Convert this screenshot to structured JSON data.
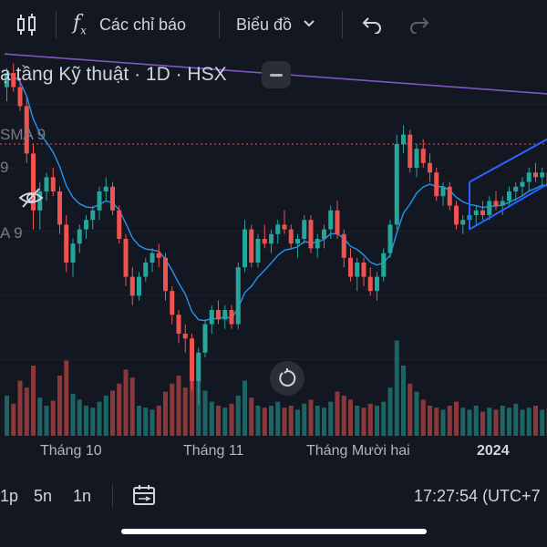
{
  "toolbar": {
    "indicators_label": "Các chỉ báo",
    "chart_type_label": "Biểu đồ"
  },
  "legend": {
    "title": "ạ tầng Kỹ thuật · 1D · HSX",
    "sma_label": "SMA 9",
    "ema_short_label": "9",
    "ema_label": "A 9"
  },
  "x_axis_labels": [
    "Tháng 10",
    "Tháng 11",
    "Tháng Mười hai",
    "2024"
  ],
  "bottom_bar": {
    "range_1": "1p",
    "range_2": "5n",
    "range_3": "1n",
    "clock": "17:27:54 (UTC+7"
  },
  "colors": {
    "background": "#131722",
    "up": "#26a69a",
    "down": "#ef5350",
    "sma_line": "#7e57c2",
    "ema_line": "#2196f3",
    "trend_channel": "#2962ff",
    "price_line": "#ef5350"
  },
  "icons": [
    "candles-icon",
    "fx-icon",
    "chevron-down-icon",
    "undo-icon",
    "redo-icon",
    "eye-off-icon",
    "date-range-icon",
    "reset-icon"
  ],
  "chart_data": {
    "type": "candlestick",
    "x_axis_ticks": [
      "Tháng 10",
      "Tháng 11",
      "Tháng Mười hai",
      "2024"
    ],
    "candles": [
      [
        16.2,
        16.6,
        15.9,
        16.5
      ],
      [
        16.5,
        16.7,
        16.1,
        16.2
      ],
      [
        16.2,
        16.4,
        15.7,
        15.8
      ],
      [
        15.8,
        16.0,
        14.6,
        14.8
      ],
      [
        14.8,
        15.0,
        13.2,
        13.6
      ],
      [
        13.6,
        14.2,
        13.2,
        14.0
      ],
      [
        14.0,
        14.4,
        13.8,
        14.3
      ],
      [
        14.3,
        14.5,
        13.9,
        14.0
      ],
      [
        14.0,
        14.1,
        13.1,
        13.3
      ],
      [
        13.3,
        13.5,
        12.3,
        12.5
      ],
      [
        12.5,
        13.0,
        12.2,
        12.9
      ],
      [
        12.9,
        13.3,
        12.7,
        13.2
      ],
      [
        13.2,
        13.5,
        13.0,
        13.4
      ],
      [
        13.4,
        13.7,
        13.2,
        13.6
      ],
      [
        13.6,
        14.1,
        13.4,
        14.0
      ],
      [
        14.0,
        14.3,
        13.8,
        14.1
      ],
      [
        14.1,
        14.2,
        13.5,
        13.6
      ],
      [
        13.6,
        13.7,
        12.9,
        13.0
      ],
      [
        13.0,
        13.1,
        12.0,
        12.2
      ],
      [
        12.2,
        12.4,
        11.6,
        11.8
      ],
      [
        11.8,
        12.3,
        11.7,
        12.2
      ],
      [
        12.2,
        12.6,
        12.1,
        12.5
      ],
      [
        12.5,
        12.8,
        12.3,
        12.7
      ],
      [
        12.7,
        12.9,
        12.4,
        12.6
      ],
      [
        12.6,
        12.7,
        11.7,
        11.9
      ],
      [
        11.9,
        12.0,
        11.2,
        11.4
      ],
      [
        11.4,
        11.5,
        10.8,
        11.0
      ],
      [
        11.0,
        11.2,
        10.6,
        10.9
      ],
      [
        10.9,
        11.0,
        9.8,
        10.0
      ],
      [
        10.0,
        10.7,
        9.5,
        10.6
      ],
      [
        10.6,
        11.3,
        10.5,
        11.2
      ],
      [
        11.2,
        11.6,
        11.0,
        11.5
      ],
      [
        11.5,
        11.7,
        11.2,
        11.3
      ],
      [
        11.3,
        11.6,
        11.1,
        11.5
      ],
      [
        11.5,
        11.6,
        11.1,
        11.2
      ],
      [
        11.2,
        12.5,
        11.1,
        12.4
      ],
      [
        12.4,
        13.4,
        12.3,
        13.2
      ],
      [
        13.2,
        13.3,
        12.4,
        12.5
      ],
      [
        12.5,
        13.1,
        12.4,
        13.0
      ],
      [
        13.0,
        13.3,
        12.8,
        12.9
      ],
      [
        12.9,
        13.2,
        12.7,
        13.1
      ],
      [
        13.1,
        13.4,
        12.9,
        13.3
      ],
      [
        13.3,
        13.6,
        13.1,
        13.2
      ],
      [
        13.2,
        13.3,
        12.8,
        12.9
      ],
      [
        12.9,
        13.1,
        12.6,
        13.0
      ],
      [
        13.0,
        13.5,
        12.9,
        13.4
      ],
      [
        13.4,
        13.5,
        12.7,
        12.8
      ],
      [
        12.8,
        13.1,
        12.6,
        13.0
      ],
      [
        13.0,
        13.3,
        12.8,
        13.2
      ],
      [
        13.2,
        13.7,
        13.0,
        13.6
      ],
      [
        13.6,
        13.8,
        13.0,
        13.1
      ],
      [
        13.1,
        13.2,
        12.4,
        12.6
      ],
      [
        12.6,
        12.8,
        12.1,
        12.2
      ],
      [
        12.2,
        12.6,
        11.9,
        12.5
      ],
      [
        12.5,
        12.6,
        12.0,
        12.2
      ],
      [
        12.2,
        12.4,
        11.8,
        11.9
      ],
      [
        11.9,
        12.3,
        11.7,
        12.2
      ],
      [
        12.2,
        12.8,
        12.1,
        12.7
      ],
      [
        12.7,
        13.4,
        12.6,
        13.3
      ],
      [
        13.3,
        15.2,
        13.2,
        15.0
      ],
      [
        15.0,
        15.4,
        14.8,
        15.2
      ],
      [
        15.2,
        15.3,
        14.4,
        14.5
      ],
      [
        14.5,
        15.0,
        14.3,
        14.9
      ],
      [
        14.9,
        15.1,
        14.5,
        14.6
      ],
      [
        14.6,
        14.8,
        14.2,
        14.4
      ],
      [
        14.4,
        14.5,
        13.8,
        13.9
      ],
      [
        13.9,
        14.2,
        13.7,
        14.1
      ],
      [
        14.1,
        14.2,
        13.6,
        13.7
      ],
      [
        13.7,
        13.8,
        13.2,
        13.3
      ],
      [
        13.3,
        13.5,
        13.1,
        13.4
      ],
      [
        13.4,
        13.6,
        13.2,
        13.5
      ],
      [
        13.5,
        13.7,
        13.3,
        13.6
      ],
      [
        13.6,
        13.8,
        13.4,
        13.5
      ],
      [
        13.5,
        13.9,
        13.4,
        13.8
      ],
      [
        13.8,
        14.0,
        13.6,
        13.7
      ],
      [
        13.7,
        13.9,
        13.5,
        13.8
      ],
      [
        13.8,
        14.1,
        13.7,
        14.0
      ],
      [
        14.0,
        14.2,
        13.8,
        14.1
      ],
      [
        14.1,
        14.3,
        13.9,
        14.2
      ],
      [
        14.2,
        14.5,
        14.0,
        14.4
      ],
      [
        14.4,
        14.6,
        14.2,
        14.3
      ],
      [
        14.3,
        14.5,
        14.1,
        14.4
      ],
      [
        14.4,
        14.5,
        14.0,
        14.1
      ]
    ],
    "volumes": [
      40,
      32,
      55,
      48,
      70,
      38,
      30,
      35,
      60,
      75,
      42,
      36,
      30,
      28,
      34,
      40,
      45,
      52,
      66,
      58,
      30,
      28,
      26,
      30,
      44,
      52,
      60,
      48,
      70,
      80,
      45,
      34,
      30,
      28,
      32,
      40,
      55,
      38,
      30,
      28,
      30,
      34,
      28,
      30,
      26,
      32,
      36,
      30,
      28,
      34,
      44,
      40,
      36,
      30,
      28,
      32,
      30,
      34,
      48,
      95,
      70,
      52,
      44,
      36,
      30,
      28,
      26,
      30,
      34,
      28,
      26,
      30,
      24,
      28,
      26,
      30,
      28,
      32,
      26,
      28,
      30,
      26,
      28
    ],
    "sma_9_long": [
      16.9,
      16.8,
      16.7,
      16.6,
      16.5,
      16.4,
      16.3,
      16.2,
      16.1,
      16.0
    ],
    "annotations": [
      "ascending-channel"
    ]
  }
}
